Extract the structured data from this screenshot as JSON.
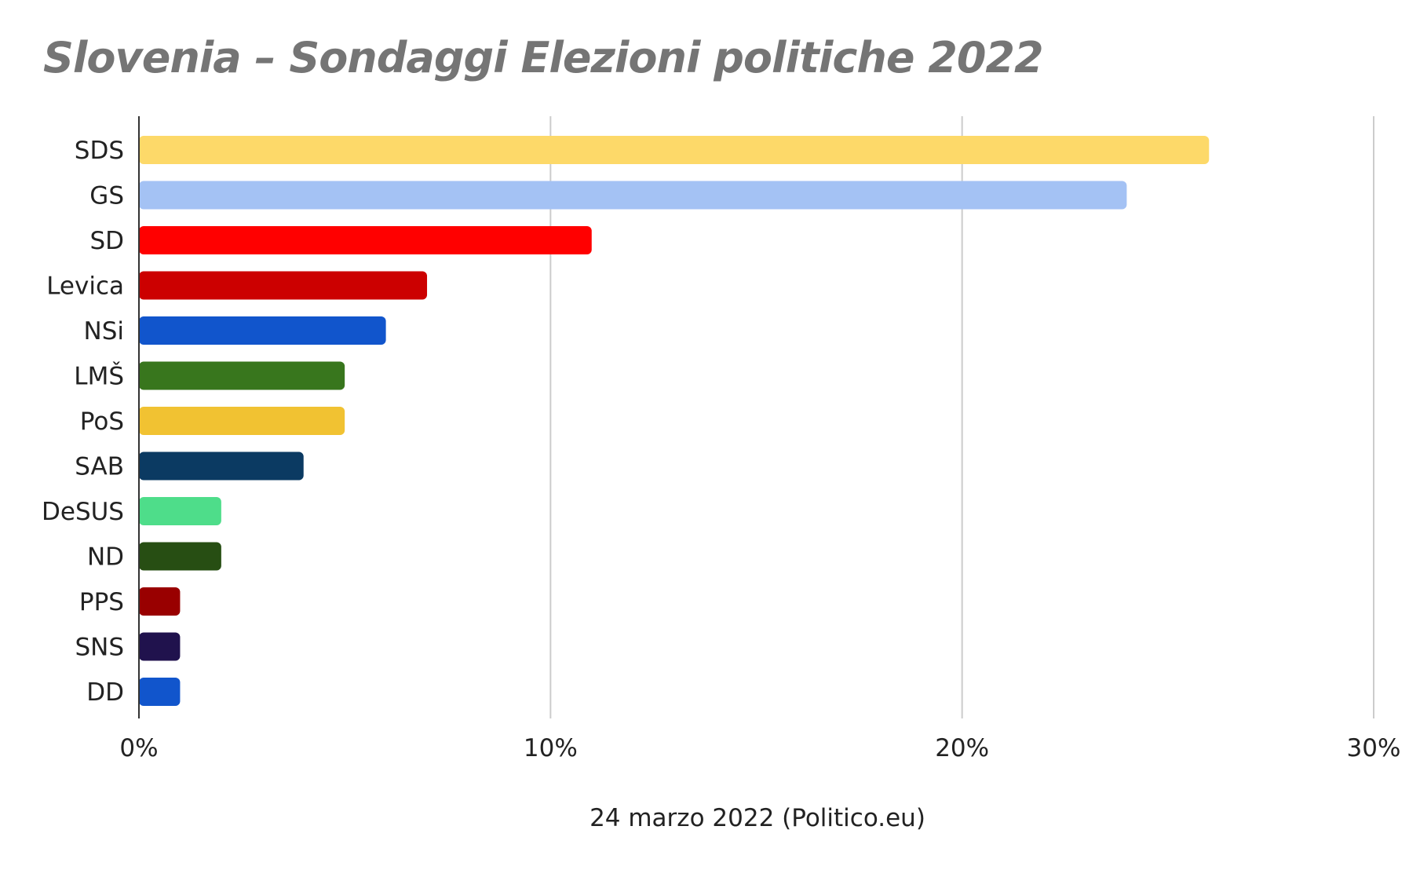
{
  "chart_data": {
    "type": "bar",
    "orientation": "horizontal",
    "title": "Slovenia – Sondaggi Elezioni politiche 2022",
    "xlabel": "24 marzo 2022 (Politico.eu)",
    "ylabel": "",
    "xlim": [
      0,
      30
    ],
    "x_ticks": [
      "0%",
      "10%",
      "20%",
      "30%"
    ],
    "grid": "vertical",
    "categories": [
      "SDS",
      "GS",
      "SD",
      "Levica",
      "NSi",
      "LMŠ",
      "PoS",
      "SAB",
      "DeSUS",
      "ND",
      "PPS",
      "SNS",
      "DD"
    ],
    "values": [
      26,
      24,
      11,
      7,
      6,
      5,
      5,
      4,
      2,
      2,
      1,
      1,
      1
    ],
    "colors": [
      "#FDD969",
      "#A4C2F4",
      "#FF0000",
      "#CC0000",
      "#1155CC",
      "#38761D",
      "#F1C232",
      "#0B3A62",
      "#4EDD8A",
      "#274E13",
      "#990000",
      "#20124D",
      "#1155CC"
    ]
  }
}
